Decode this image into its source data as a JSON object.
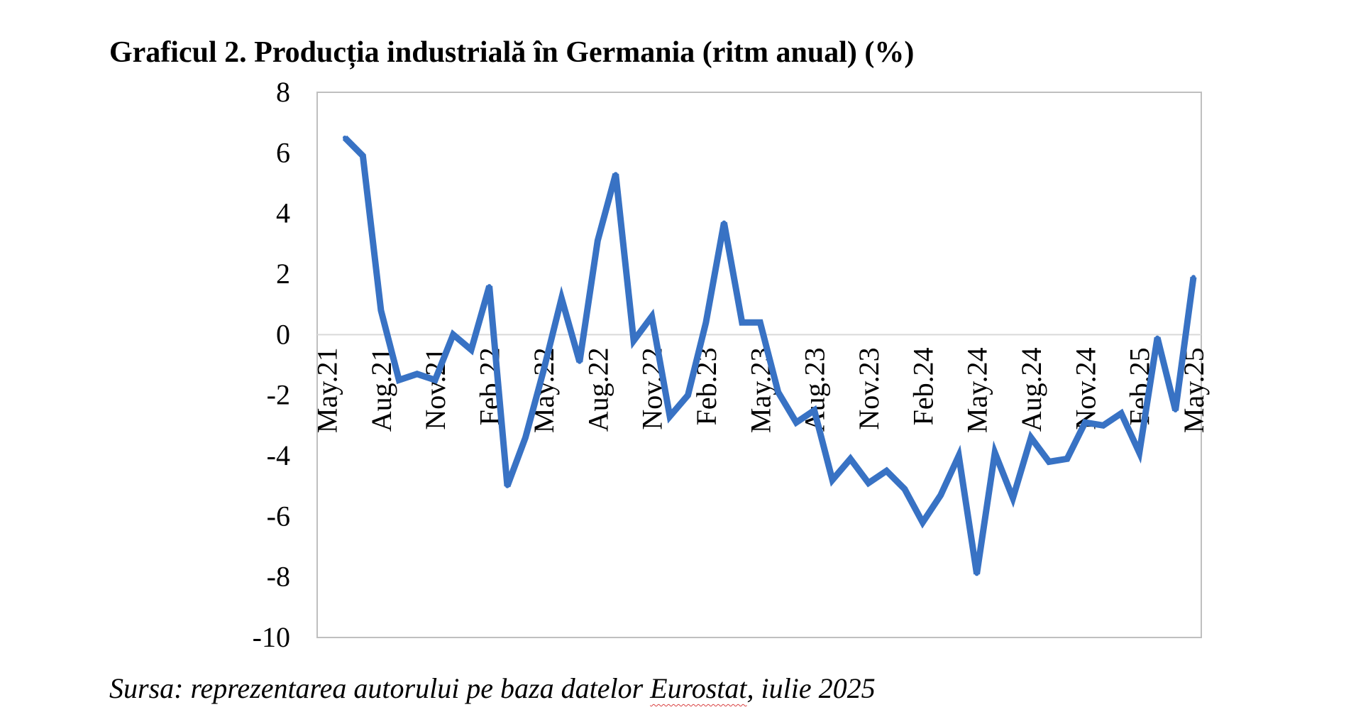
{
  "title": "Graficul 2. Producția industrială în Germania (ritm anual) (%)",
  "source": {
    "prefix": "Sursa: reprezentarea autorului pe baza datelor ",
    "link": "Eurostat",
    "suffix": ", iulie 2025"
  },
  "colors": {
    "line": "#3872c4",
    "frame": "#bfbfbf",
    "zero_line": "#d9d9d9"
  },
  "chart_data": {
    "type": "line",
    "title": "Graficul 2. Producția industrială în Germania (ritm anual) (%)",
    "xlabel": "",
    "ylabel": "",
    "ylim": [
      -10,
      8
    ],
    "yticks": [
      8,
      6,
      4,
      2,
      0,
      -2,
      -4,
      -6,
      -8,
      -10
    ],
    "grid": false,
    "legend": "none",
    "x_tick_labels": [
      "May.21",
      "Aug.21",
      "Nov.21",
      "Feb.22",
      "May.22",
      "Aug.22",
      "Nov.22",
      "Feb.23",
      "May.23",
      "Aug.23",
      "Nov.23",
      "Feb.24",
      "May.24",
      "Aug.24",
      "Nov.24",
      "Feb.25",
      "May.25"
    ],
    "x": [
      "Jun.21",
      "Jul.21",
      "Aug.21",
      "Sep.21",
      "Oct.21",
      "Nov.21",
      "Dec.21",
      "Jan.22",
      "Feb.22",
      "Mar.22",
      "Apr.22",
      "May.22",
      "Jun.22",
      "Jul.22",
      "Aug.22",
      "Sep.22",
      "Oct.22",
      "Nov.22",
      "Dec.22",
      "Jan.23",
      "Feb.23",
      "Mar.23",
      "Apr.23",
      "May.23",
      "Jun.23",
      "Jul.23",
      "Aug.23",
      "Sep.23",
      "Oct.23",
      "Nov.23",
      "Dec.23",
      "Jan.24",
      "Feb.24",
      "Mar.24",
      "Apr.24",
      "May.24",
      "Jun.24",
      "Jul.24",
      "Aug.24",
      "Sep.24",
      "Oct.24",
      "Nov.24",
      "Dec.24",
      "Jan.25",
      "Feb.25",
      "Mar.25",
      "Apr.25",
      "May.25"
    ],
    "series": [
      {
        "values": [
          6.5,
          5.9,
          0.8,
          -1.5,
          -1.3,
          -1.5,
          0.0,
          -0.5,
          1.6,
          -5.0,
          -3.4,
          -1.2,
          1.2,
          -0.9,
          3.1,
          5.3,
          -0.2,
          0.6,
          -2.7,
          -2.0,
          0.4,
          3.7,
          0.4,
          0.4,
          -1.9,
          -2.9,
          -2.5,
          -4.8,
          -4.1,
          -4.9,
          -4.5,
          -5.1,
          -6.2,
          -5.3,
          -4.0,
          -7.9,
          -3.9,
          -5.4,
          -3.4,
          -4.2,
          -4.1,
          -2.9,
          -3.0,
          -2.6,
          -3.9,
          -0.1,
          -2.5,
          1.9
        ]
      }
    ]
  }
}
